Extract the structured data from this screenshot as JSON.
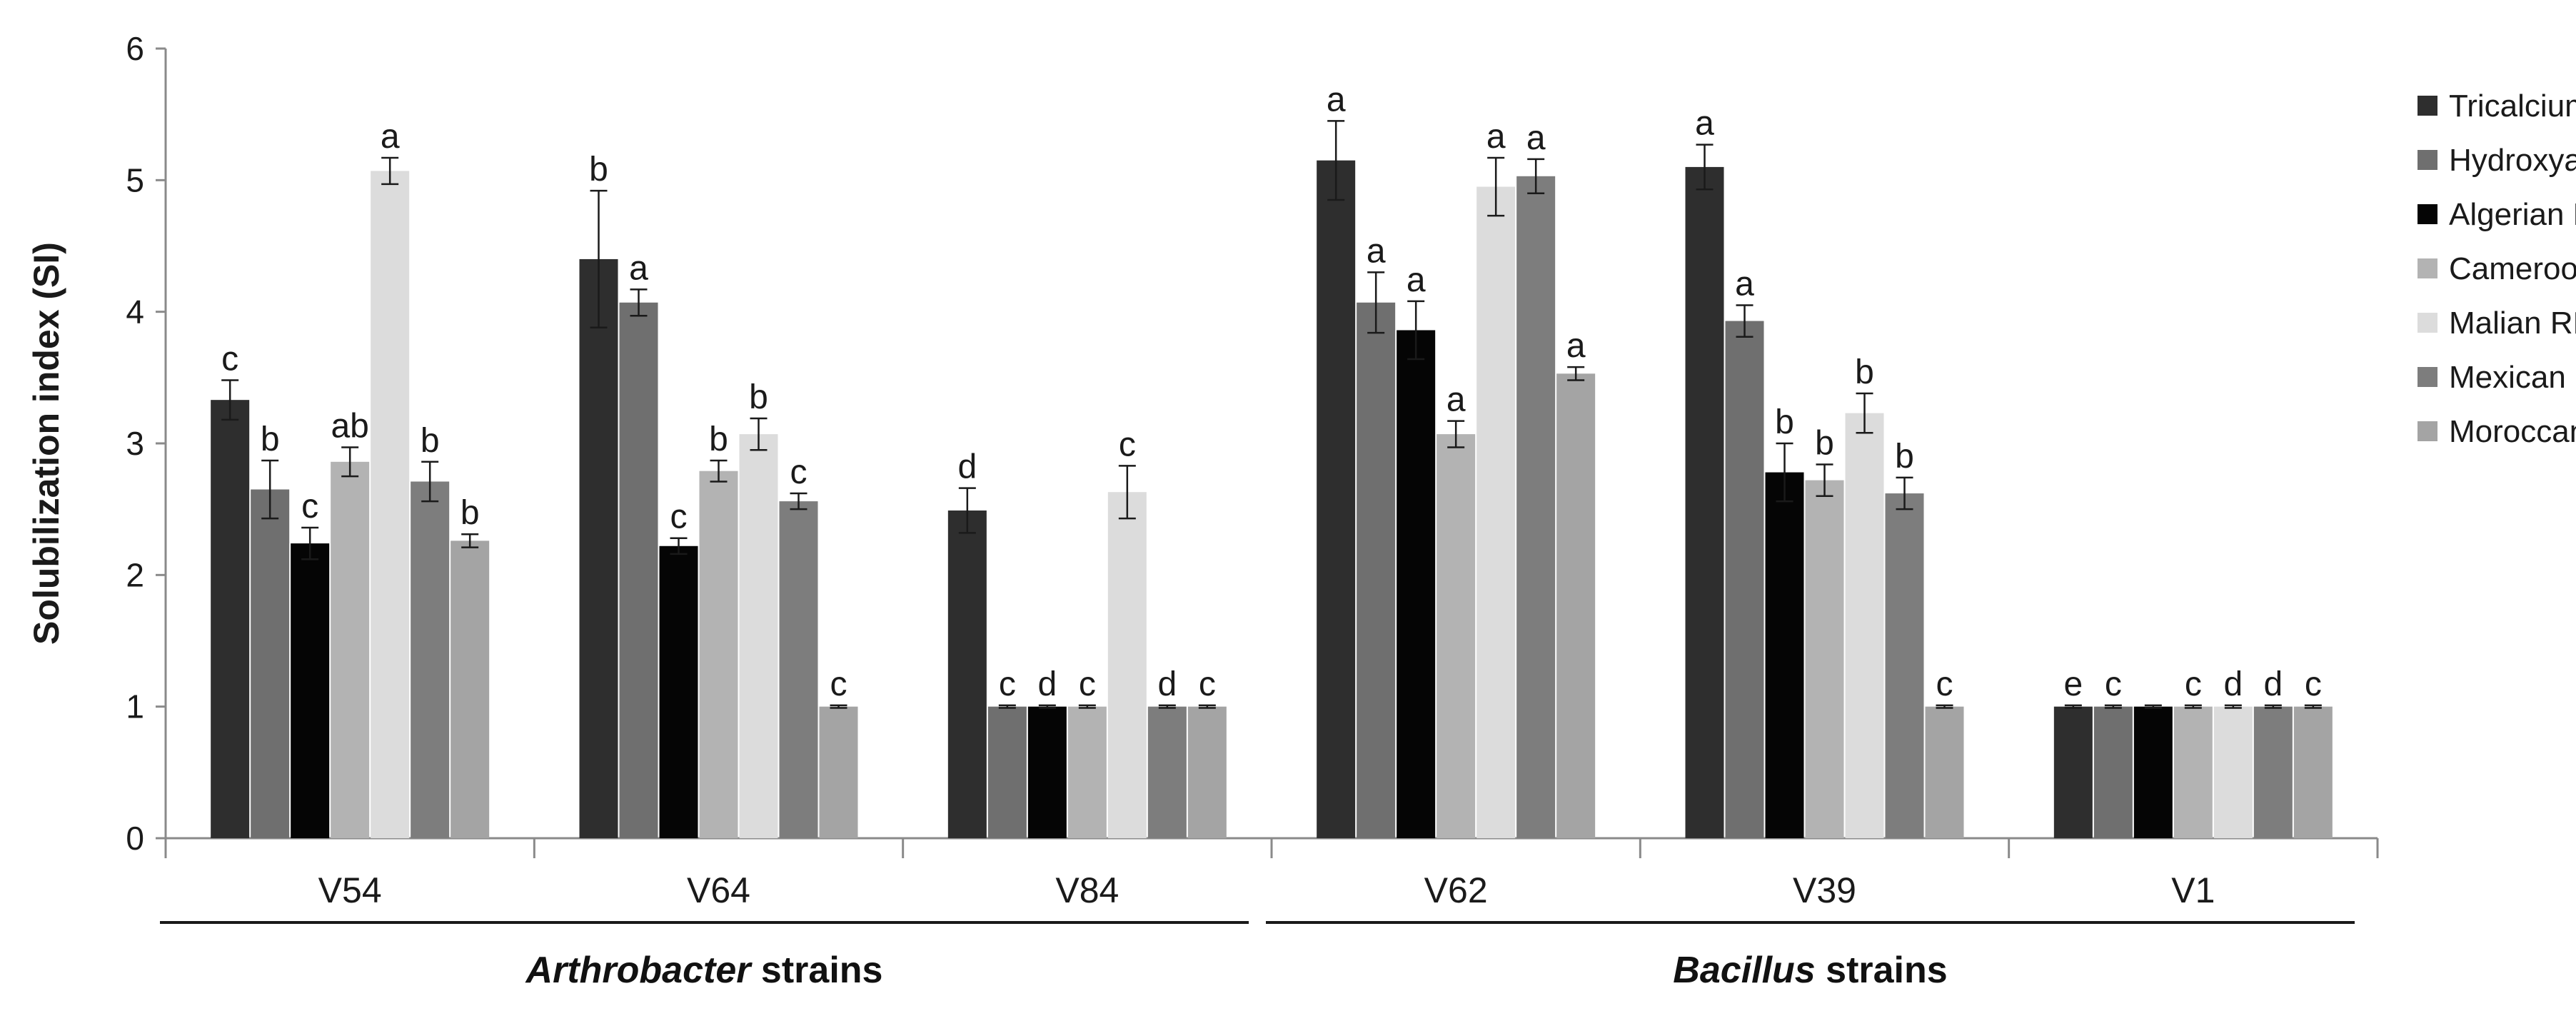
{
  "chart_data": {
    "type": "bar",
    "title": "",
    "xlabel": "",
    "ylabel": "Solubilization index (SI)",
    "ylim": [
      0,
      6
    ],
    "yticks": [
      "0",
      "1",
      "2",
      "3",
      "4",
      "5",
      "6"
    ],
    "grid": false,
    "legend_position": "right",
    "categories": [
      "V54",
      "V64",
      "V84",
      "V62",
      "V39",
      "V1"
    ],
    "series": [
      {
        "name": "Tricalcium P",
        "color": "#2e2e2e",
        "values": [
          3.33,
          4.4,
          2.49,
          5.15,
          5.1,
          1.0
        ],
        "errors": [
          0.15,
          0.52,
          0.17,
          0.3,
          0.17,
          0.01
        ],
        "letters": [
          "c",
          "b",
          "d",
          "a",
          "a",
          "e"
        ]
      },
      {
        "name": "Hydroxyapatite",
        "color": "#6f6f6f",
        "values": [
          2.65,
          4.07,
          1.0,
          4.07,
          3.93,
          1.0
        ],
        "errors": [
          0.22,
          0.1,
          0.01,
          0.23,
          0.12,
          0.01
        ],
        "letters": [
          "b",
          "a",
          "c",
          "a",
          "a",
          "c"
        ]
      },
      {
        "name": "Algerian RP",
        "color": "#050505",
        "values": [
          2.24,
          2.22,
          1.0,
          3.86,
          2.78,
          1.0
        ],
        "errors": [
          0.12,
          0.06,
          0.01,
          0.22,
          0.22,
          0.01
        ],
        "letters": [
          "c",
          "c",
          "d",
          "a",
          "b",
          ""
        ]
      },
      {
        "name": "Cameroonian RP",
        "color": "#b3b3b3",
        "values": [
          2.86,
          2.79,
          1.0,
          3.07,
          2.72,
          1.0
        ],
        "errors": [
          0.11,
          0.08,
          0.01,
          0.1,
          0.12,
          0.01
        ],
        "letters": [
          "ab",
          "b",
          "c",
          "a",
          "b",
          "c"
        ]
      },
      {
        "name": "Malian RP",
        "color": "#dcdcdc",
        "values": [
          5.07,
          3.07,
          2.63,
          4.95,
          3.23,
          1.0
        ],
        "errors": [
          0.1,
          0.12,
          0.2,
          0.22,
          0.15,
          0.01
        ],
        "letters": [
          "a",
          "b",
          "c",
          "a",
          "b",
          "d"
        ]
      },
      {
        "name": "Mexican RP",
        "color": "#7d7d7d",
        "values": [
          2.71,
          2.56,
          1.0,
          5.03,
          2.62,
          1.0
        ],
        "errors": [
          0.15,
          0.06,
          0.01,
          0.13,
          0.12,
          0.01
        ],
        "letters": [
          "b",
          "c",
          "d",
          "a",
          "b",
          "d"
        ]
      },
      {
        "name": "Moroccan RP",
        "color": "#a4a4a4",
        "values": [
          2.26,
          1.0,
          1.0,
          3.53,
          1.0,
          1.0
        ],
        "errors": [
          0.05,
          0.01,
          0.01,
          0.05,
          0.01,
          0.01
        ],
        "letters": [
          "b",
          "c",
          "c",
          "a",
          "c",
          "c"
        ]
      }
    ],
    "groups": [
      {
        "italic": "Arthrobacter",
        "rest": " strains",
        "categories": [
          "V54",
          "V64",
          "V84"
        ]
      },
      {
        "italic": "Bacillus",
        "rest": " strains",
        "categories": [
          "V62",
          "V39",
          "V1"
        ]
      }
    ]
  }
}
